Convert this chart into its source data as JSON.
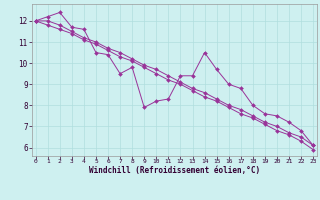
{
  "x": [
    0,
    1,
    2,
    3,
    4,
    5,
    6,
    7,
    8,
    9,
    10,
    11,
    12,
    13,
    14,
    15,
    16,
    17,
    18,
    19,
    20,
    21,
    22,
    23
  ],
  "y_main": [
    12.0,
    12.2,
    12.4,
    11.7,
    11.6,
    10.5,
    10.4,
    9.5,
    9.8,
    7.9,
    8.2,
    8.3,
    9.4,
    9.4,
    10.5,
    9.7,
    9.0,
    8.8,
    8.0,
    7.6,
    7.5,
    7.2,
    6.8,
    6.1
  ],
  "y_upper": [
    12.0,
    12.0,
    11.8,
    11.5,
    11.2,
    11.0,
    10.7,
    10.5,
    10.2,
    9.9,
    9.7,
    9.4,
    9.1,
    8.8,
    8.6,
    8.3,
    8.0,
    7.8,
    7.5,
    7.2,
    7.0,
    6.7,
    6.5,
    6.1
  ],
  "y_lower": [
    12.0,
    11.8,
    11.6,
    11.4,
    11.1,
    10.9,
    10.6,
    10.3,
    10.1,
    9.8,
    9.5,
    9.2,
    9.0,
    8.7,
    8.4,
    8.2,
    7.9,
    7.6,
    7.4,
    7.1,
    6.8,
    6.6,
    6.3,
    5.9
  ],
  "color": "#993399",
  "bg_color": "#cef0f0",
  "grid_color": "#b0dede",
  "xlabel": "Windchill (Refroidissement éolien,°C)",
  "ylim": [
    5.6,
    12.8
  ],
  "xlim": [
    -0.3,
    23.3
  ],
  "yticks": [
    6,
    7,
    8,
    9,
    10,
    11,
    12
  ],
  "xticks": [
    0,
    1,
    2,
    3,
    4,
    5,
    6,
    7,
    8,
    9,
    10,
    11,
    12,
    13,
    14,
    15,
    16,
    17,
    18,
    19,
    20,
    21,
    22,
    23
  ]
}
